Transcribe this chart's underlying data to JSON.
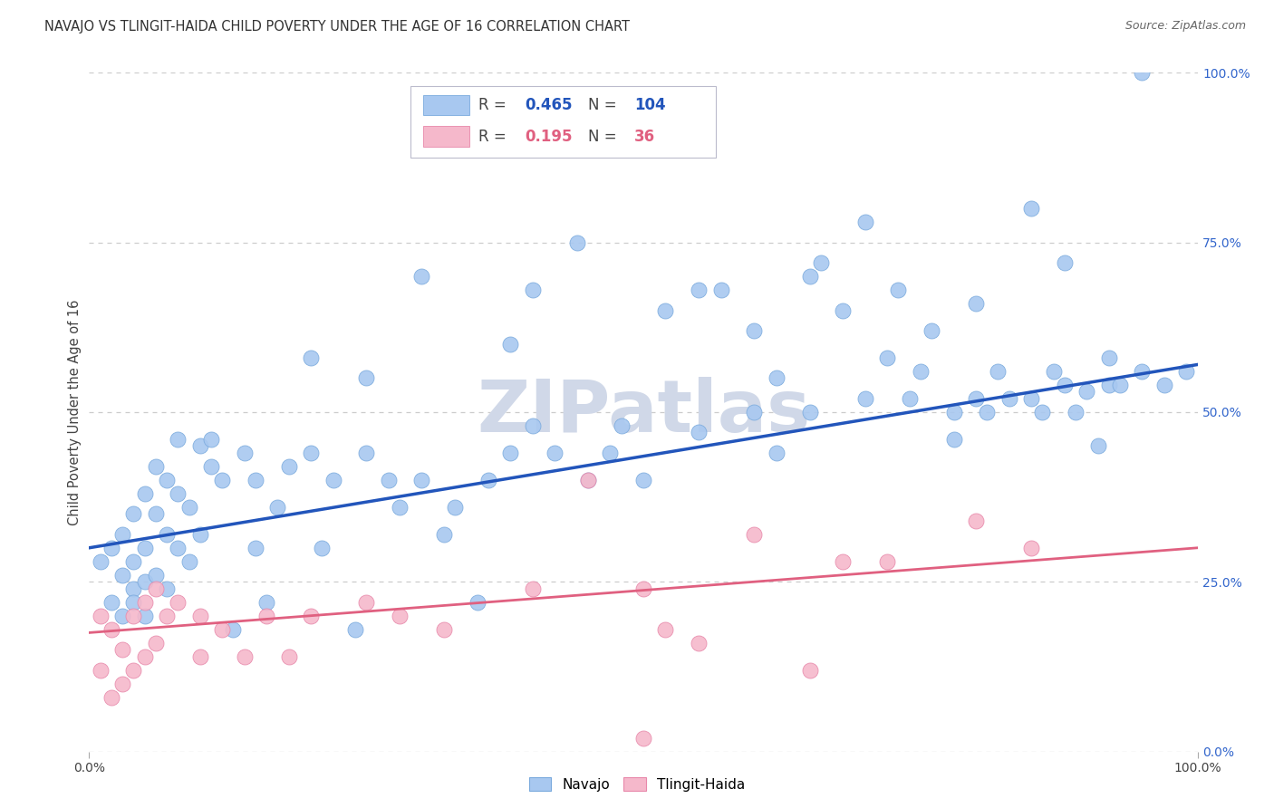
{
  "title": "NAVAJO VS TLINGIT-HAIDA CHILD POVERTY UNDER THE AGE OF 16 CORRELATION CHART",
  "source": "Source: ZipAtlas.com",
  "ylabel": "Child Poverty Under the Age of 16",
  "navajo_R": 0.465,
  "navajo_N": 104,
  "tlingit_R": 0.195,
  "tlingit_N": 36,
  "navajo_color": "#a8c8f0",
  "navajo_edge_color": "#7aaadd",
  "tlingit_color": "#f5b8cb",
  "tlingit_edge_color": "#e888aa",
  "navajo_line_color": "#2255bb",
  "tlingit_line_color": "#e06080",
  "watermark_color": "#d0d8e8",
  "background_color": "#ffffff",
  "grid_color": "#cccccc",
  "right_tick_color": "#3366cc",
  "navajo_x": [
    0.01,
    0.02,
    0.02,
    0.03,
    0.03,
    0.03,
    0.04,
    0.04,
    0.04,
    0.04,
    0.05,
    0.05,
    0.05,
    0.05,
    0.06,
    0.06,
    0.06,
    0.07,
    0.07,
    0.07,
    0.08,
    0.08,
    0.08,
    0.09,
    0.09,
    0.1,
    0.1,
    0.11,
    0.11,
    0.12,
    0.13,
    0.14,
    0.15,
    0.15,
    0.16,
    0.17,
    0.18,
    0.2,
    0.21,
    0.22,
    0.24,
    0.25,
    0.27,
    0.28,
    0.3,
    0.32,
    0.33,
    0.35,
    0.36,
    0.38,
    0.4,
    0.42,
    0.45,
    0.47,
    0.5,
    0.52,
    0.55,
    0.57,
    0.6,
    0.62,
    0.65,
    0.68,
    0.7,
    0.72,
    0.74,
    0.75,
    0.76,
    0.78,
    0.8,
    0.81,
    0.82,
    0.83,
    0.85,
    0.86,
    0.87,
    0.88,
    0.89,
    0.9,
    0.91,
    0.92,
    0.93,
    0.95,
    0.97,
    0.99,
    0.25,
    0.38,
    0.55,
    0.73,
    0.3,
    0.65,
    0.88,
    0.2,
    0.4,
    0.6,
    0.8,
    0.44,
    0.66,
    0.85,
    0.7,
    0.48,
    0.62,
    0.78,
    0.92,
    0.95
  ],
  "navajo_y": [
    0.28,
    0.22,
    0.3,
    0.26,
    0.32,
    0.2,
    0.35,
    0.28,
    0.24,
    0.22,
    0.38,
    0.3,
    0.25,
    0.2,
    0.42,
    0.35,
    0.26,
    0.4,
    0.32,
    0.24,
    0.46,
    0.38,
    0.3,
    0.36,
    0.28,
    0.45,
    0.32,
    0.46,
    0.42,
    0.4,
    0.18,
    0.44,
    0.3,
    0.4,
    0.22,
    0.36,
    0.42,
    0.44,
    0.3,
    0.4,
    0.18,
    0.44,
    0.4,
    0.36,
    0.4,
    0.32,
    0.36,
    0.22,
    0.4,
    0.44,
    0.48,
    0.44,
    0.4,
    0.44,
    0.4,
    0.65,
    0.47,
    0.68,
    0.5,
    0.55,
    0.5,
    0.65,
    0.52,
    0.58,
    0.52,
    0.56,
    0.62,
    0.5,
    0.52,
    0.5,
    0.56,
    0.52,
    0.52,
    0.5,
    0.56,
    0.54,
    0.5,
    0.53,
    0.45,
    0.54,
    0.54,
    0.56,
    0.54,
    0.56,
    0.55,
    0.6,
    0.68,
    0.68,
    0.7,
    0.7,
    0.72,
    0.58,
    0.68,
    0.62,
    0.66,
    0.75,
    0.72,
    0.8,
    0.78,
    0.48,
    0.44,
    0.46,
    0.58,
    1.0
  ],
  "tlingit_x": [
    0.01,
    0.01,
    0.02,
    0.02,
    0.03,
    0.03,
    0.04,
    0.04,
    0.05,
    0.05,
    0.06,
    0.06,
    0.07,
    0.08,
    0.1,
    0.1,
    0.12,
    0.14,
    0.16,
    0.18,
    0.2,
    0.25,
    0.28,
    0.32,
    0.4,
    0.45,
    0.5,
    0.52,
    0.55,
    0.6,
    0.65,
    0.68,
    0.72,
    0.8,
    0.85,
    0.5
  ],
  "tlingit_y": [
    0.2,
    0.12,
    0.18,
    0.08,
    0.15,
    0.1,
    0.2,
    0.12,
    0.22,
    0.14,
    0.24,
    0.16,
    0.2,
    0.22,
    0.2,
    0.14,
    0.18,
    0.14,
    0.2,
    0.14,
    0.2,
    0.22,
    0.2,
    0.18,
    0.24,
    0.4,
    0.24,
    0.18,
    0.16,
    0.32,
    0.12,
    0.28,
    0.28,
    0.34,
    0.3,
    0.02
  ],
  "navajo_trend": [
    0.0,
    1.0,
    0.3,
    0.57
  ],
  "tlingit_trend": [
    0.0,
    1.0,
    0.175,
    0.3
  ],
  "xlim": [
    0.0,
    1.0
  ],
  "ylim": [
    0.0,
    1.0
  ],
  "yticks": [
    0.0,
    0.25,
    0.5,
    0.75,
    1.0
  ],
  "ytick_labels": [
    "0.0%",
    "25.0%",
    "50.0%",
    "75.0%",
    "100.0%"
  ],
  "xtick_labels_pos": [
    0.0,
    1.0
  ],
  "xtick_labels": [
    "0.0%",
    "100.0%"
  ]
}
